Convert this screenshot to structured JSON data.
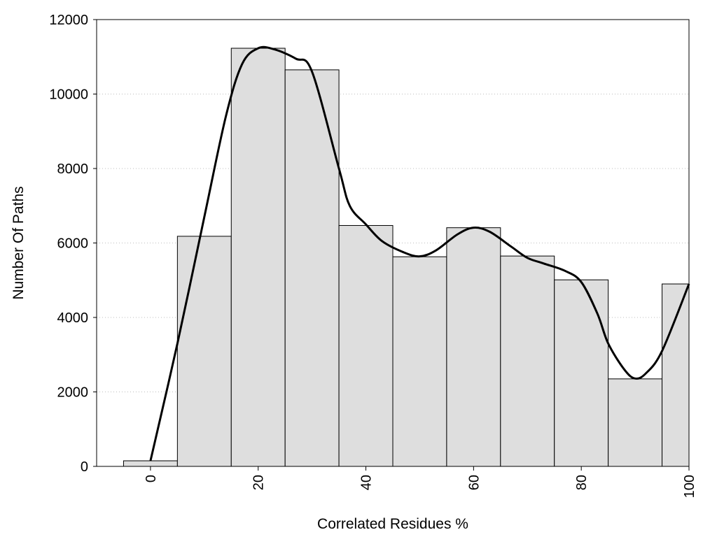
{
  "chart_data": {
    "type": "bar",
    "title": "",
    "xlabel": "Correlated Residues %",
    "ylabel": "Number Of Paths",
    "x_ticks": [
      0,
      20,
      40,
      60,
      80,
      100
    ],
    "y_ticks": [
      0,
      2000,
      4000,
      6000,
      8000,
      10000,
      12000
    ],
    "xlim": [
      -10,
      100
    ],
    "ylim": [
      0,
      12000
    ],
    "grid": "horizontal-dotted",
    "bars": {
      "bin_centers": [
        0,
        10,
        20,
        30,
        40,
        50,
        60,
        70,
        80,
        90,
        100
      ],
      "bin_width": 10,
      "values": [
        150,
        6180,
        11230,
        10650,
        6470,
        5630,
        6410,
        5650,
        5010,
        2350,
        4900
      ],
      "fill": "#dedede",
      "stroke": "#000000"
    },
    "curve": {
      "x": [
        0,
        5,
        10,
        14,
        17,
        20,
        23,
        27,
        30,
        35,
        37,
        40,
        43,
        47,
        50,
        53,
        57,
        60,
        63,
        67,
        70,
        73,
        77,
        80,
        83,
        85,
        88,
        90,
        92,
        95,
        100
      ],
      "y": [
        150,
        3300,
        6700,
        9400,
        10800,
        11230,
        11200,
        10950,
        10600,
        8000,
        7000,
        6500,
        6050,
        5750,
        5640,
        5800,
        6230,
        6410,
        6300,
        5900,
        5600,
        5450,
        5250,
        4950,
        4100,
        3300,
        2600,
        2360,
        2500,
        3100,
        4900
      ],
      "color": "#000000"
    }
  }
}
